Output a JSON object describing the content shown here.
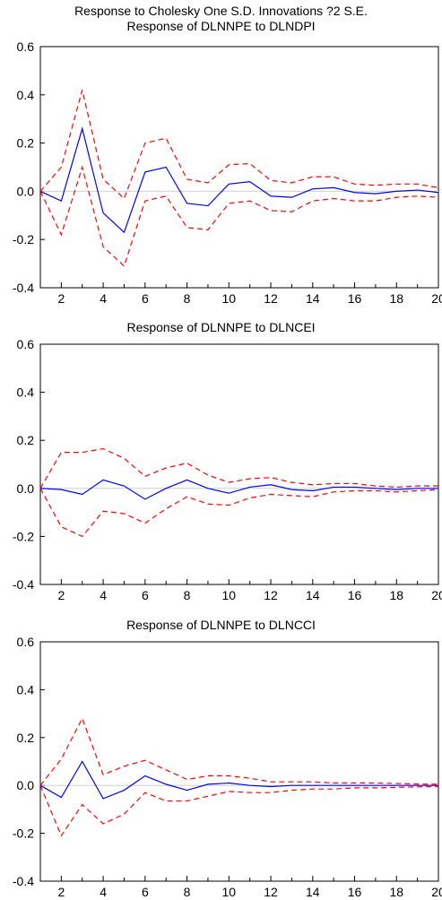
{
  "figure": {
    "main_title": "Response to Cholesky One S.D. Innovations ?2 S.E."
  },
  "chart_data": [
    {
      "type": "line",
      "title": "Response of DLNNPE to DLNDPI",
      "xlabel": "",
      "ylabel": "",
      "x": [
        1,
        2,
        3,
        4,
        5,
        6,
        7,
        8,
        9,
        10,
        11,
        12,
        13,
        14,
        15,
        16,
        17,
        18,
        19,
        20
      ],
      "x_ticks": [
        2,
        4,
        6,
        8,
        10,
        12,
        14,
        16,
        18,
        20
      ],
      "xlim": [
        1,
        20
      ],
      "ylim": [
        -0.4,
        0.6
      ],
      "y_ticks": [
        -0.4,
        -0.2,
        0.0,
        0.2,
        0.4,
        0.6
      ],
      "y_tick_labels": [
        "-0.4",
        "-0.2",
        "0.0",
        "0.2",
        "0.4",
        "0.6"
      ],
      "grid": false,
      "legend": "none",
      "series": [
        {
          "role": "response",
          "color": "#0000ff",
          "style": "solid",
          "values": [
            0.0,
            -0.04,
            0.26,
            -0.09,
            -0.17,
            0.08,
            0.1,
            -0.05,
            -0.06,
            0.03,
            0.04,
            -0.02,
            -0.025,
            0.01,
            0.015,
            -0.005,
            -0.01,
            0.0,
            0.005,
            -0.005
          ]
        },
        {
          "role": "upper",
          "color": "#ff0000",
          "style": "dashed",
          "values": [
            0.0,
            0.1,
            0.42,
            0.05,
            -0.03,
            0.2,
            0.22,
            0.05,
            0.035,
            0.11,
            0.115,
            0.045,
            0.035,
            0.06,
            0.06,
            0.03,
            0.025,
            0.03,
            0.03,
            0.015
          ]
        },
        {
          "role": "lower",
          "color": "#ff0000",
          "style": "dashed",
          "values": [
            0.0,
            -0.18,
            0.1,
            -0.23,
            -0.31,
            -0.04,
            -0.02,
            -0.15,
            -0.16,
            -0.05,
            -0.04,
            -0.08,
            -0.085,
            -0.04,
            -0.03,
            -0.04,
            -0.04,
            -0.025,
            -0.02,
            -0.025
          ]
        }
      ]
    },
    {
      "type": "line",
      "title": "Response of DLNNPE to DLNCEI",
      "xlabel": "",
      "ylabel": "",
      "x": [
        1,
        2,
        3,
        4,
        5,
        6,
        7,
        8,
        9,
        10,
        11,
        12,
        13,
        14,
        15,
        16,
        17,
        18,
        19,
        20
      ],
      "x_ticks": [
        2,
        4,
        6,
        8,
        10,
        12,
        14,
        16,
        18,
        20
      ],
      "xlim": [
        1,
        20
      ],
      "ylim": [
        -0.4,
        0.6
      ],
      "y_ticks": [
        -0.4,
        -0.2,
        0.0,
        0.2,
        0.4,
        0.6
      ],
      "y_tick_labels": [
        "-0.4",
        "-0.2",
        "0.0",
        "0.2",
        "0.4",
        "0.6"
      ],
      "grid": false,
      "legend": "none",
      "series": [
        {
          "role": "response",
          "color": "#0000ff",
          "style": "solid",
          "values": [
            0.0,
            -0.005,
            -0.025,
            0.035,
            0.01,
            -0.045,
            0.0,
            0.035,
            0.0,
            -0.02,
            0.005,
            0.015,
            -0.005,
            -0.01,
            0.005,
            0.005,
            0.0,
            -0.005,
            0.0,
            0.0
          ]
        },
        {
          "role": "upper",
          "color": "#ff0000",
          "style": "dashed",
          "values": [
            0.0,
            0.15,
            0.15,
            0.165,
            0.125,
            0.05,
            0.085,
            0.105,
            0.055,
            0.025,
            0.04,
            0.045,
            0.025,
            0.015,
            0.02,
            0.02,
            0.01,
            0.005,
            0.01,
            0.01
          ]
        },
        {
          "role": "lower",
          "color": "#ff0000",
          "style": "dashed",
          "values": [
            0.0,
            -0.16,
            -0.2,
            -0.095,
            -0.105,
            -0.145,
            -0.085,
            -0.035,
            -0.065,
            -0.07,
            -0.04,
            -0.025,
            -0.03,
            -0.035,
            -0.015,
            -0.01,
            -0.01,
            -0.015,
            -0.01,
            -0.005
          ]
        }
      ]
    },
    {
      "type": "line",
      "title": "Response of DLNNPE to DLNCCI",
      "xlabel": "",
      "ylabel": "",
      "x": [
        1,
        2,
        3,
        4,
        5,
        6,
        7,
        8,
        9,
        10,
        11,
        12,
        13,
        14,
        15,
        16,
        17,
        18,
        19,
        20
      ],
      "x_ticks": [
        2,
        4,
        6,
        8,
        10,
        12,
        14,
        16,
        18,
        20
      ],
      "xlim": [
        1,
        20
      ],
      "ylim": [
        -0.4,
        0.6
      ],
      "y_ticks": [
        -0.4,
        -0.2,
        0.0,
        0.2,
        0.4,
        0.6
      ],
      "y_tick_labels": [
        "-0.4",
        "-0.2",
        "0.0",
        "0.2",
        "0.4",
        "0.6"
      ],
      "grid": false,
      "legend": "none",
      "series": [
        {
          "role": "response",
          "color": "#0000ff",
          "style": "solid",
          "values": [
            0.0,
            -0.05,
            0.1,
            -0.055,
            -0.02,
            0.04,
            0.005,
            -0.02,
            0.005,
            0.01,
            0.0,
            -0.005,
            0.0,
            0.0,
            0.0,
            0.0,
            0.0,
            0.0,
            0.0,
            0.0
          ]
        },
        {
          "role": "upper",
          "color": "#ff0000",
          "style": "dashed",
          "values": [
            0.0,
            0.11,
            0.28,
            0.045,
            0.08,
            0.105,
            0.065,
            0.025,
            0.04,
            0.04,
            0.03,
            0.015,
            0.015,
            0.015,
            0.01,
            0.01,
            0.01,
            0.008,
            0.006,
            0.005
          ]
        },
        {
          "role": "lower",
          "color": "#ff0000",
          "style": "dashed",
          "values": [
            0.0,
            -0.21,
            -0.08,
            -0.16,
            -0.12,
            -0.03,
            -0.065,
            -0.065,
            -0.045,
            -0.025,
            -0.03,
            -0.03,
            -0.02,
            -0.015,
            -0.015,
            -0.01,
            -0.01,
            -0.008,
            -0.006,
            -0.005
          ]
        }
      ]
    }
  ]
}
